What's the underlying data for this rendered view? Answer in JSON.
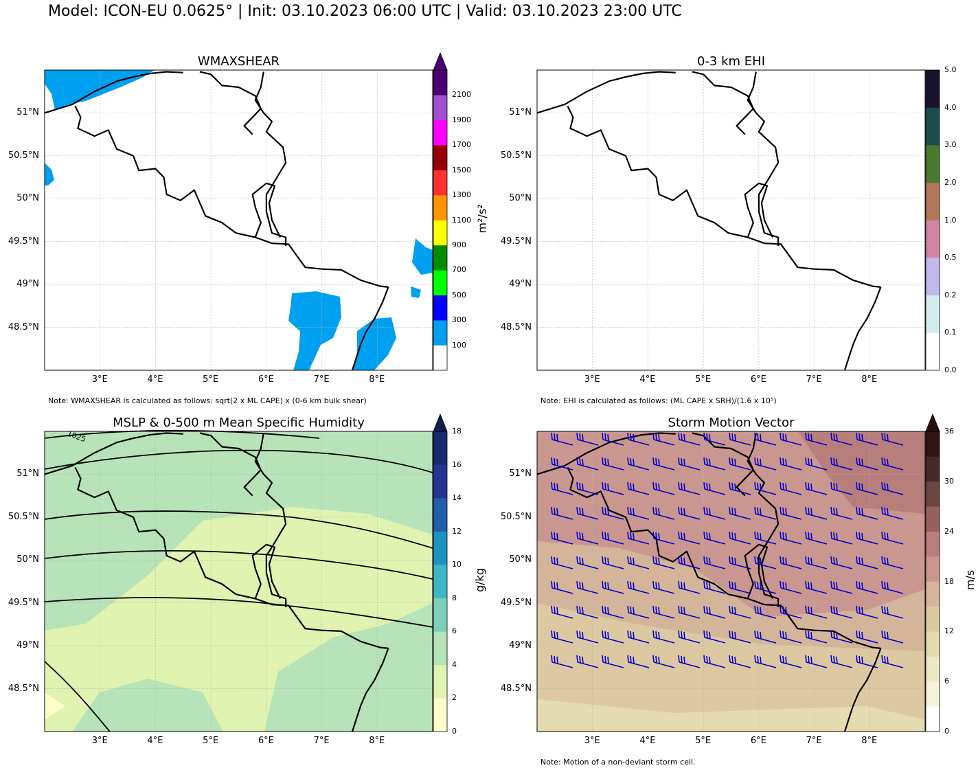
{
  "header": {
    "title": "Model: ICON-EU 0.0625° | Init: 03.10.2023 06:00 UTC | Valid: 03.10.2023 23:00 UTC"
  },
  "map_extent": {
    "lon": [
      2.0,
      9.0
    ],
    "lat": [
      48.0,
      51.5
    ]
  },
  "axes": {
    "lon_ticks": [
      "3°E",
      "4°E",
      "5°E",
      "6°E",
      "7°E",
      "8°E"
    ],
    "lat_ticks": [
      "51°N",
      "50.5°N",
      "50°N",
      "49.5°N",
      "49°N",
      "48.5°N"
    ]
  },
  "panels": [
    {
      "title": "WMAXSHEAR",
      "note": "Note: WMAXSHEAR is calculated as follows: sqrt(2 x ML CAPE) x (0-6 km bulk shear)",
      "colorbar": {
        "unit": "m²/s²",
        "tick_labels": [
          "100",
          "300",
          "500",
          "700",
          "900",
          "1100",
          "1300",
          "1500",
          "1700",
          "1900",
          "2100"
        ],
        "colors": [
          "#ffffff",
          "#00a0f0",
          "#0000ff",
          "#00ff00",
          "#008c00",
          "#ffff00",
          "#ff9400",
          "#ff3030",
          "#960000",
          "#ff00ff",
          "#a050d0",
          "#4b0073"
        ],
        "extend_color": "#4b0073"
      }
    },
    {
      "title": "0-3 km EHI",
      "note": "Note: EHI is calculated as follows: (ML CAPE x SRH)/(1.6 x 10⁵)",
      "colorbar": {
        "unit": "",
        "tick_labels": [
          "0.0",
          "0.1",
          "0.2",
          "0.5",
          "1.0",
          "2.0",
          "3.0",
          "4.0",
          "5.0"
        ],
        "colors": [
          "#ffffff",
          "#d2eeee",
          "#c3b8ec",
          "#d284a5",
          "#b07858",
          "#4a7a30",
          "#1b4e4a",
          "#1a1330"
        ]
      }
    },
    {
      "title": "MSLP & 0-500 m Mean Specific Humidity",
      "note": "",
      "contour_label": "1025",
      "colorbar": {
        "unit": "g/kg",
        "tick_labels": [
          "0",
          "2",
          "4",
          "6",
          "8",
          "10",
          "12",
          "14",
          "16",
          "18"
        ],
        "colors": [
          "#ffffcc",
          "#e0f3b0",
          "#b6e3b8",
          "#7fcdbb",
          "#40b6c4",
          "#1d93c0",
          "#225ea8",
          "#253494",
          "#162a6d"
        ],
        "extend_color": "#0e1e54"
      }
    },
    {
      "title": "Storm Motion Vector",
      "note": "Note: Motion of a non-deviant storm cell.",
      "colorbar": {
        "unit": "m/s",
        "tick_labels": [
          "0",
          "6",
          "12",
          "18",
          "24",
          "30",
          "36"
        ],
        "colors": [
          "#ffffff",
          "#f5f2dc",
          "#ede9c3",
          "#e4dcb0",
          "#dcc9a2",
          "#d4b59a",
          "#c99790",
          "#b87e7b",
          "#95625e",
          "#6c4642",
          "#452a28",
          "#2d1614"
        ],
        "extend_color": "#2a0f0f"
      }
    }
  ],
  "fields": {
    "wind_barb_color": "#0000cc",
    "border_color": "#000000",
    "grid_color": "#b4b4b4"
  }
}
